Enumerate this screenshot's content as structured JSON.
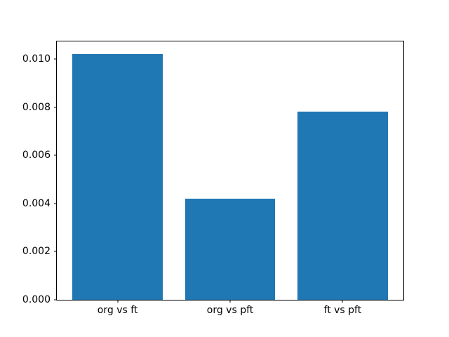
{
  "figure": {
    "background_color": "#ffffff",
    "spine_color": "#000000",
    "tick_color": "#000000",
    "text_color": "#000000"
  },
  "chart_data": {
    "type": "bar",
    "title": "",
    "xlabel": "",
    "ylabel": "",
    "categories": [
      "org vs ft",
      "org vs pft",
      "ft vs pft"
    ],
    "values": [
      0.0102,
      0.0042,
      0.0078
    ],
    "bar_color": "#1f77b4",
    "bar_width": 0.8,
    "xlim": [
      -0.54,
      2.54
    ],
    "ylim": [
      0,
      0.010725
    ],
    "yticks": [
      0.0,
      0.002,
      0.004,
      0.006,
      0.008,
      0.01
    ],
    "ytick_labels": [
      "0.000",
      "0.002",
      "0.004",
      "0.006",
      "0.008",
      "0.010"
    ],
    "grid": false,
    "legend": null
  }
}
